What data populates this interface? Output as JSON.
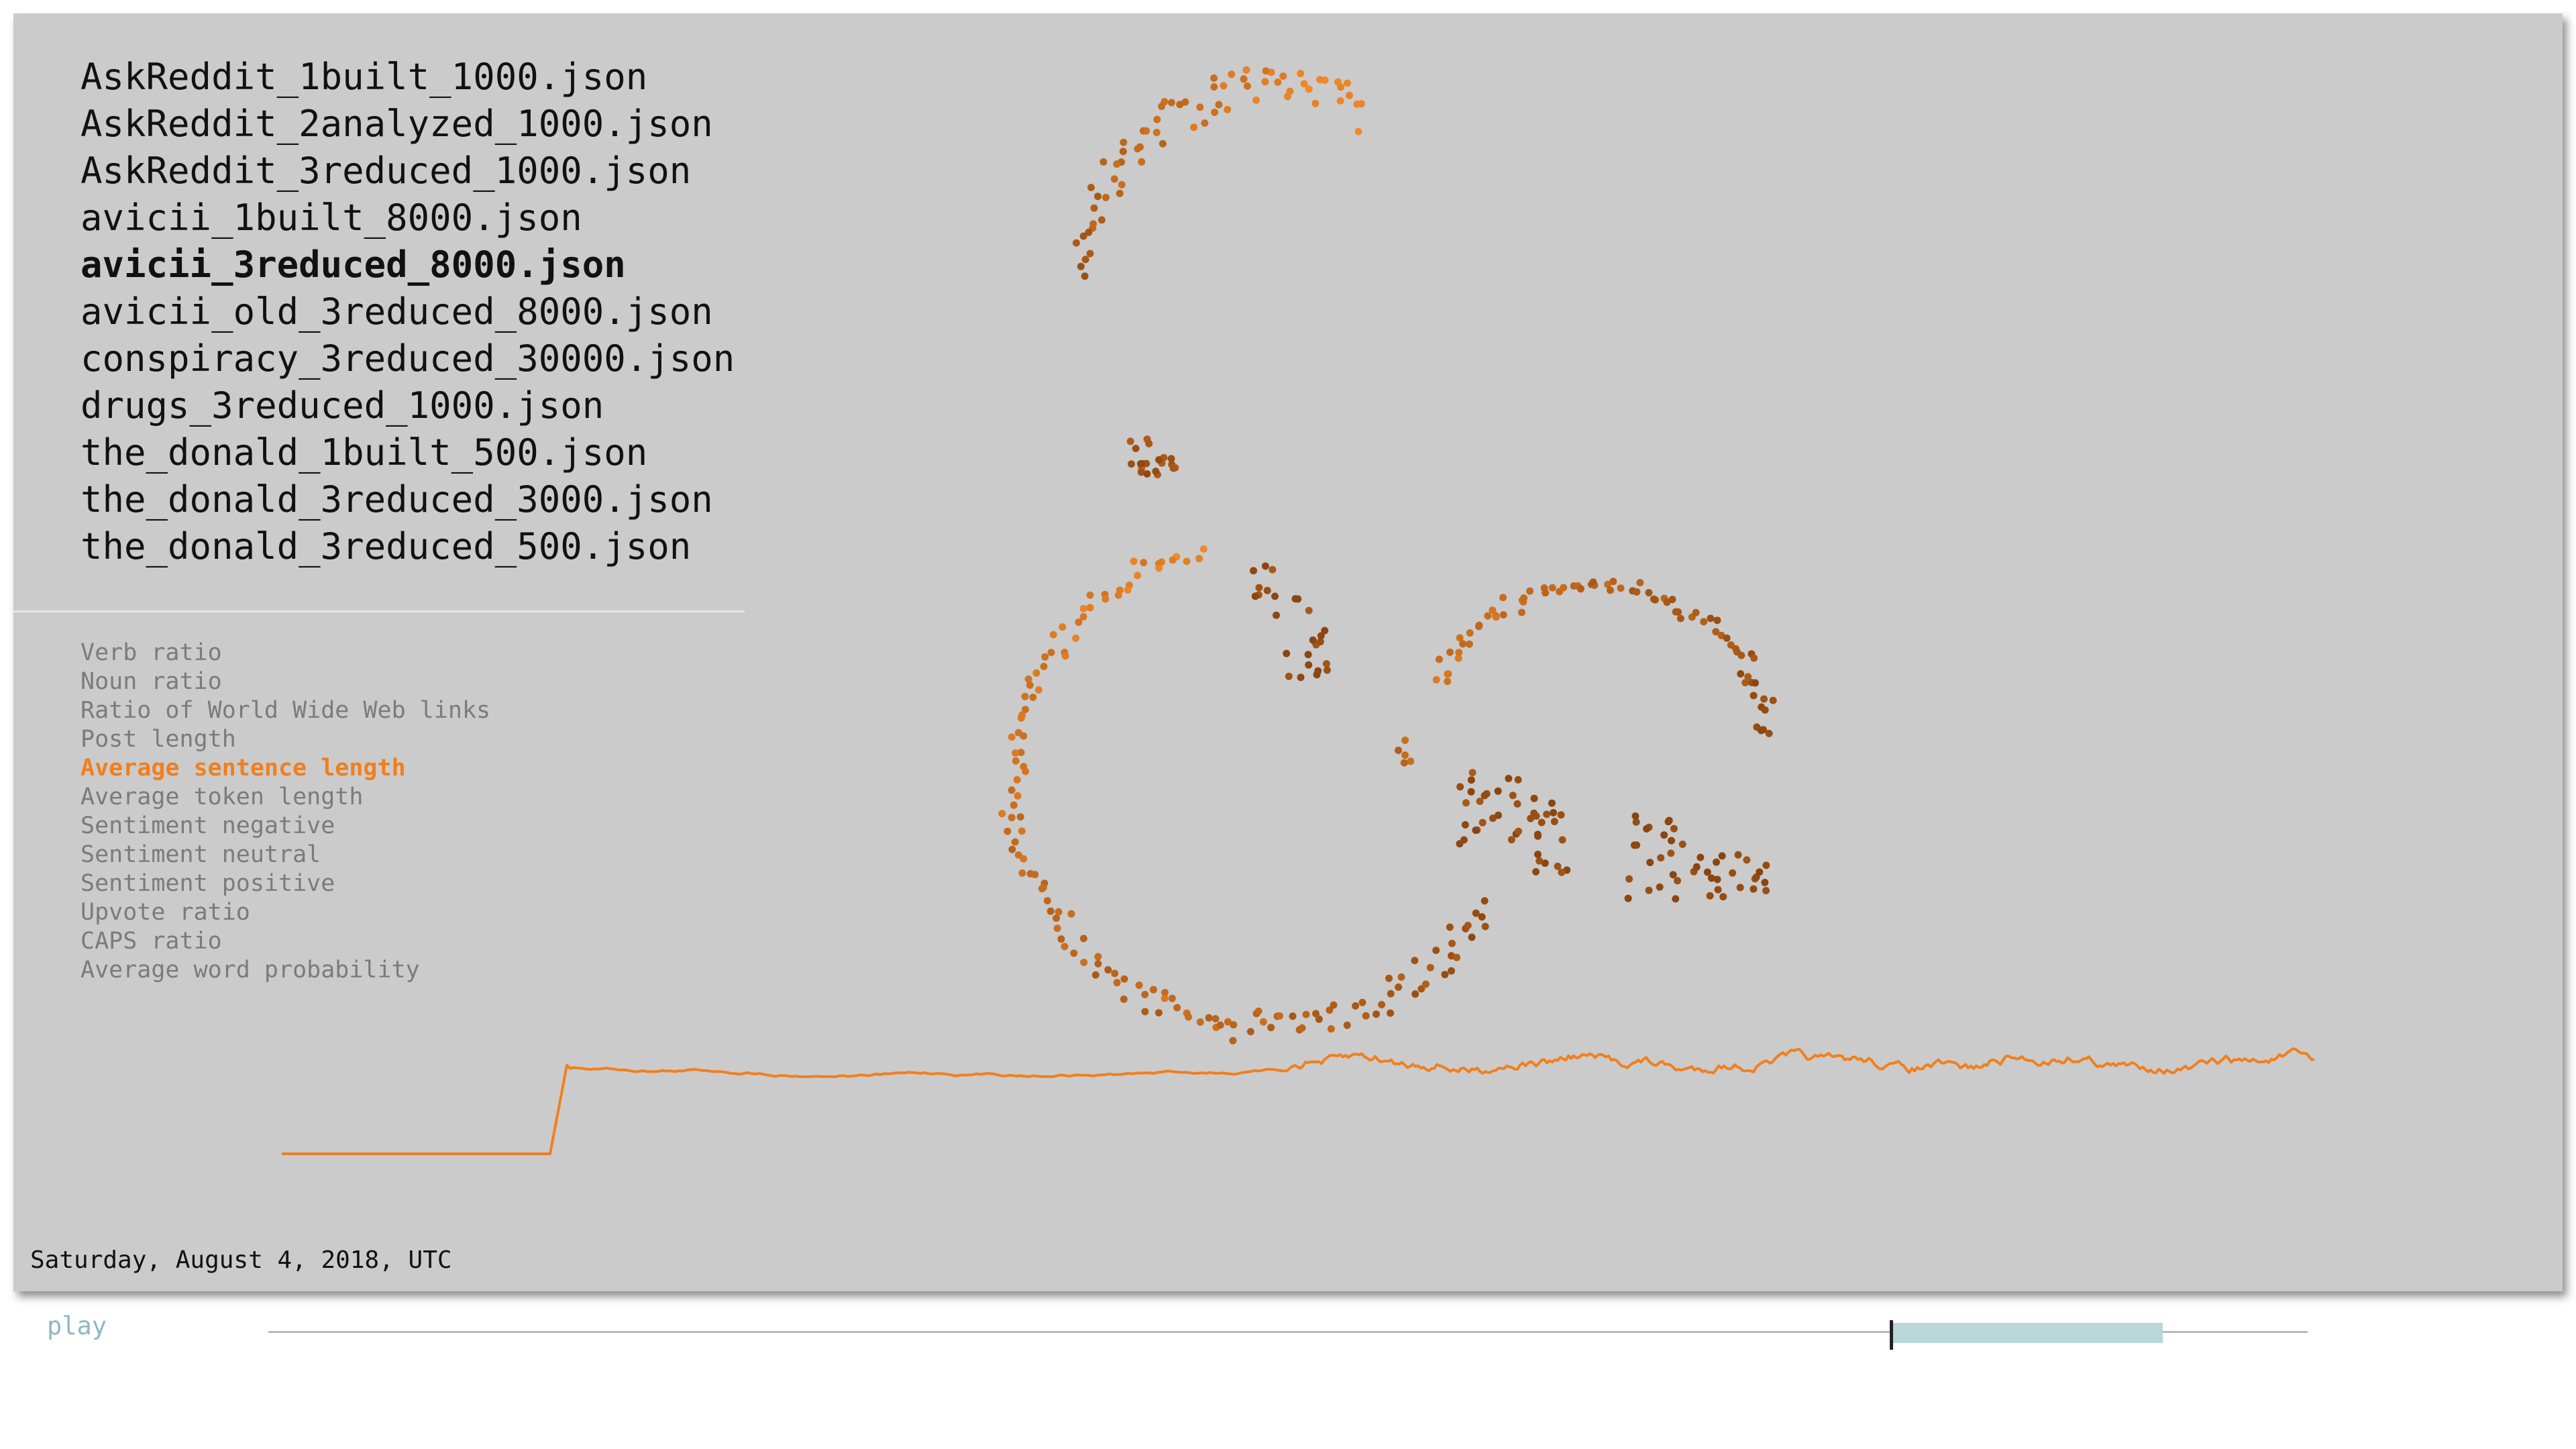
{
  "files": {
    "items": [
      "AskReddit_1built_1000.json",
      "AskReddit_2analyzed_1000.json",
      "AskReddit_3reduced_1000.json",
      "avicii_1built_8000.json",
      "avicii_3reduced_8000.json",
      "avicii_old_3reduced_8000.json",
      "conspiracy_3reduced_30000.json",
      "drugs_3reduced_1000.json",
      "the_donald_1built_500.json",
      "the_donald_3reduced_3000.json",
      "the_donald_3reduced_500.json"
    ],
    "selected_index": 4
  },
  "features": {
    "items": [
      "Verb ratio",
      "Noun ratio",
      "Ratio of World Wide Web links",
      "Post length",
      "Average sentence length",
      "Average token length",
      "Sentiment negative",
      "Sentiment neutral",
      "Sentiment positive",
      "Upvote ratio",
      "CAPS ratio",
      "Average word probability"
    ],
    "selected_index": 4
  },
  "date_label": "Saturday, August 4, 2018, UTC",
  "controls": {
    "play_label": "play"
  },
  "timeline": {
    "window_start_fraction": 0.795,
    "window_end_fraction": 0.929,
    "cursor_fraction": 0.795
  },
  "colors": {
    "background": "#cbcbcb",
    "accent": "#f17f1d",
    "point_light": "#f28a2a",
    "point_dark": "#8a4510",
    "text": "#111111",
    "muted_text": "#7b7b7b",
    "play": "#8db8c2",
    "timeline_window": "#b9d6d8"
  }
}
